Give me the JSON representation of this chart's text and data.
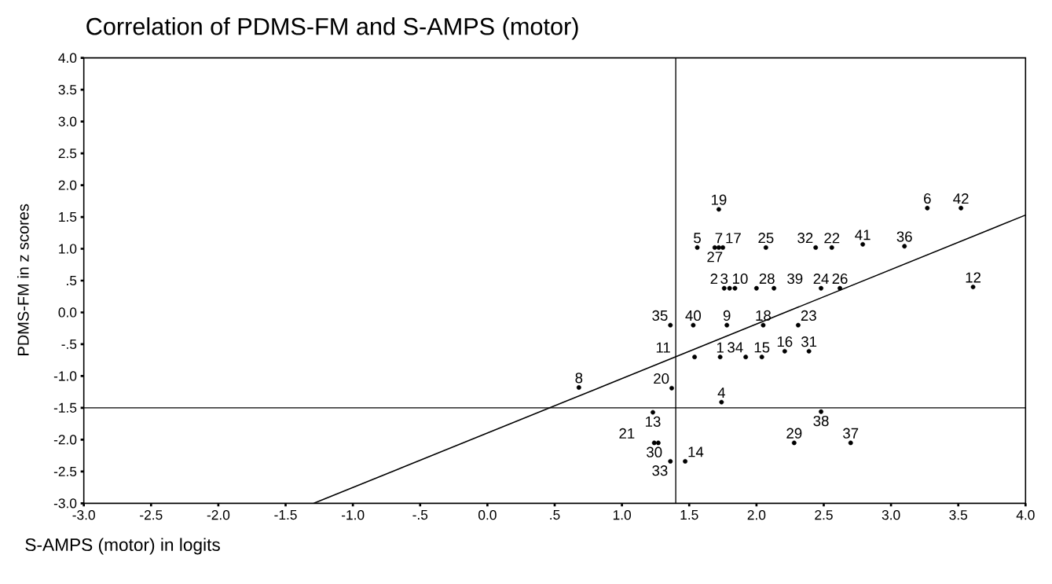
{
  "chart_data": {
    "type": "scatter",
    "title": "Correlation of PDMS-FM and S-AMPS (motor)",
    "xlabel": "S-AMPS (motor) in logits",
    "ylabel": "PDMS-FM in z scores",
    "xlim": [
      -3.0,
      4.0
    ],
    "ylim": [
      -3.0,
      4.0
    ],
    "xticks": [
      {
        "value": -3.0,
        "label": "-3.0"
      },
      {
        "value": -2.5,
        "label": "-2.5"
      },
      {
        "value": -2.0,
        "label": "-2.0"
      },
      {
        "value": -1.5,
        "label": "-1.5"
      },
      {
        "value": -1.0,
        "label": "-1.0"
      },
      {
        "value": -0.5,
        "label": "-.5"
      },
      {
        "value": 0.0,
        "label": "0.0"
      },
      {
        "value": 0.5,
        "label": ".5"
      },
      {
        "value": 1.0,
        "label": "1.0"
      },
      {
        "value": 1.5,
        "label": "1.5"
      },
      {
        "value": 2.0,
        "label": "2.0"
      },
      {
        "value": 2.5,
        "label": "2.5"
      },
      {
        "value": 3.0,
        "label": "3.0"
      },
      {
        "value": 3.5,
        "label": "3.5"
      },
      {
        "value": 4.0,
        "label": "4.0"
      }
    ],
    "yticks": [
      {
        "value": -3.0,
        "label": "-3.0"
      },
      {
        "value": -2.5,
        "label": "-2.5"
      },
      {
        "value": -2.0,
        "label": "-2.0"
      },
      {
        "value": -1.5,
        "label": "-1.5"
      },
      {
        "value": -1.0,
        "label": "-1.0"
      },
      {
        "value": -0.5,
        "label": "-.5"
      },
      {
        "value": 0.0,
        "label": "0.0"
      },
      {
        "value": 0.5,
        "label": ".5"
      },
      {
        "value": 1.0,
        "label": "1.0"
      },
      {
        "value": 1.5,
        "label": "1.5"
      },
      {
        "value": 2.0,
        "label": "2.0"
      },
      {
        "value": 2.5,
        "label": "2.5"
      },
      {
        "value": 3.0,
        "label": "3.0"
      },
      {
        "value": 3.5,
        "label": "3.5"
      },
      {
        "value": 4.0,
        "label": "4.0"
      }
    ],
    "grid": false,
    "ref_lines": [
      {
        "axis": "x",
        "value": 1.4,
        "color": "#000000"
      },
      {
        "axis": "y",
        "value": -1.5,
        "color": "#000000"
      }
    ],
    "series": [
      {
        "color": "#000000",
        "marker": "circle",
        "x": [
          1.73,
          1.76,
          1.74,
          1.56,
          3.27,
          1.72,
          0.68,
          1.78,
          1.8,
          1.84,
          1.54,
          3.61,
          1.23,
          1.47,
          2.04,
          2.21,
          1.75,
          2.05,
          1.72,
          1.37,
          1.27,
          2.56,
          2.31,
          2.48,
          2.07,
          2.62,
          1.69,
          2.0,
          2.28,
          1.24,
          2.39,
          2.44,
          1.36,
          1.92,
          1.36,
          3.1,
          2.7,
          2.48,
          2.13,
          1.53,
          2.79,
          3.52
        ],
        "values": [
          -0.7,
          0.38,
          -1.41,
          1.02,
          1.64,
          1.02,
          -1.18,
          -0.2,
          0.38,
          0.38,
          -0.7,
          0.4,
          -1.57,
          -2.34,
          -0.7,
          -0.61,
          1.02,
          -0.2,
          1.62,
          -1.19,
          -2.05,
          1.02,
          -0.2,
          0.38,
          1.02,
          0.38,
          1.02,
          0.38,
          -2.05,
          -2.05,
          -0.61,
          1.02,
          -2.34,
          -0.7,
          -0.2,
          1.04,
          -2.05,
          -1.56,
          0.38,
          -0.2,
          1.07,
          1.64
        ]
      },
      {
        "type": "line",
        "color": "#000000",
        "x": [
          -1.29,
          4.0
        ],
        "values": [
          -3.0,
          1.53
        ],
        "marker": "none",
        "line_style": "solid"
      }
    ],
    "annotations": [
      {
        "text": "1",
        "x": 1.73,
        "y": -0.7
      },
      {
        "text": "3",
        "x": 1.76,
        "y": 0.38
      },
      {
        "text": "4",
        "x": 1.74,
        "y": -1.41
      },
      {
        "text": "5",
        "x": 1.56,
        "y": 1.02
      },
      {
        "text": "6",
        "x": 3.27,
        "y": 1.64
      },
      {
        "text": "7",
        "x": 1.72,
        "y": 1.02
      },
      {
        "text": "8",
        "x": 0.68,
        "y": -1.18
      },
      {
        "text": "9",
        "x": 1.78,
        "y": -0.2
      },
      {
        "text": "10",
        "x": 1.8,
        "y": 0.38
      },
      {
        "text": "2",
        "x": 1.84,
        "y": 0.38
      },
      {
        "text": "11",
        "x": 1.54,
        "y": -0.7
      },
      {
        "text": "12",
        "x": 3.61,
        "y": 0.4
      },
      {
        "text": "13",
        "x": 1.23,
        "y": -1.57
      },
      {
        "text": "14",
        "x": 1.47,
        "y": -2.34
      },
      {
        "text": "15",
        "x": 2.04,
        "y": -0.7
      },
      {
        "text": "16",
        "x": 2.21,
        "y": -0.61
      },
      {
        "text": "17",
        "x": 1.75,
        "y": 1.02
      },
      {
        "text": "18",
        "x": 2.05,
        "y": -0.2
      },
      {
        "text": "19",
        "x": 1.72,
        "y": 1.62
      },
      {
        "text": "20",
        "x": 1.37,
        "y": -1.19
      },
      {
        "text": "21",
        "x": 1.27,
        "y": -2.05
      },
      {
        "text": "22",
        "x": 2.56,
        "y": 1.02
      },
      {
        "text": "23",
        "x": 2.31,
        "y": -0.2
      },
      {
        "text": "24",
        "x": 2.48,
        "y": 0.38
      },
      {
        "text": "25",
        "x": 2.07,
        "y": 1.02
      },
      {
        "text": "26",
        "x": 2.62,
        "y": 0.38
      },
      {
        "text": "27",
        "x": 1.69,
        "y": 1.02
      },
      {
        "text": "28",
        "x": 2.0,
        "y": 0.38
      },
      {
        "text": "29",
        "x": 2.28,
        "y": -2.05
      },
      {
        "text": "30",
        "x": 1.24,
        "y": -2.05
      },
      {
        "text": "31",
        "x": 2.39,
        "y": -0.61
      },
      {
        "text": "32",
        "x": 2.44,
        "y": 1.02
      },
      {
        "text": "33",
        "x": 1.36,
        "y": -2.34
      },
      {
        "text": "34",
        "x": 1.92,
        "y": -0.7
      },
      {
        "text": "35",
        "x": 1.36,
        "y": -0.2
      },
      {
        "text": "36",
        "x": 3.1,
        "y": 1.04
      },
      {
        "text": "37",
        "x": 2.7,
        "y": -2.05
      },
      {
        "text": "38",
        "x": 2.48,
        "y": -1.56
      },
      {
        "text": "39",
        "x": 2.13,
        "y": 0.38
      },
      {
        "text": "40",
        "x": 1.53,
        "y": -0.2
      },
      {
        "text": "41",
        "x": 2.79,
        "y": 1.07
      },
      {
        "text": "42",
        "x": 3.52,
        "y": 1.64
      }
    ]
  }
}
